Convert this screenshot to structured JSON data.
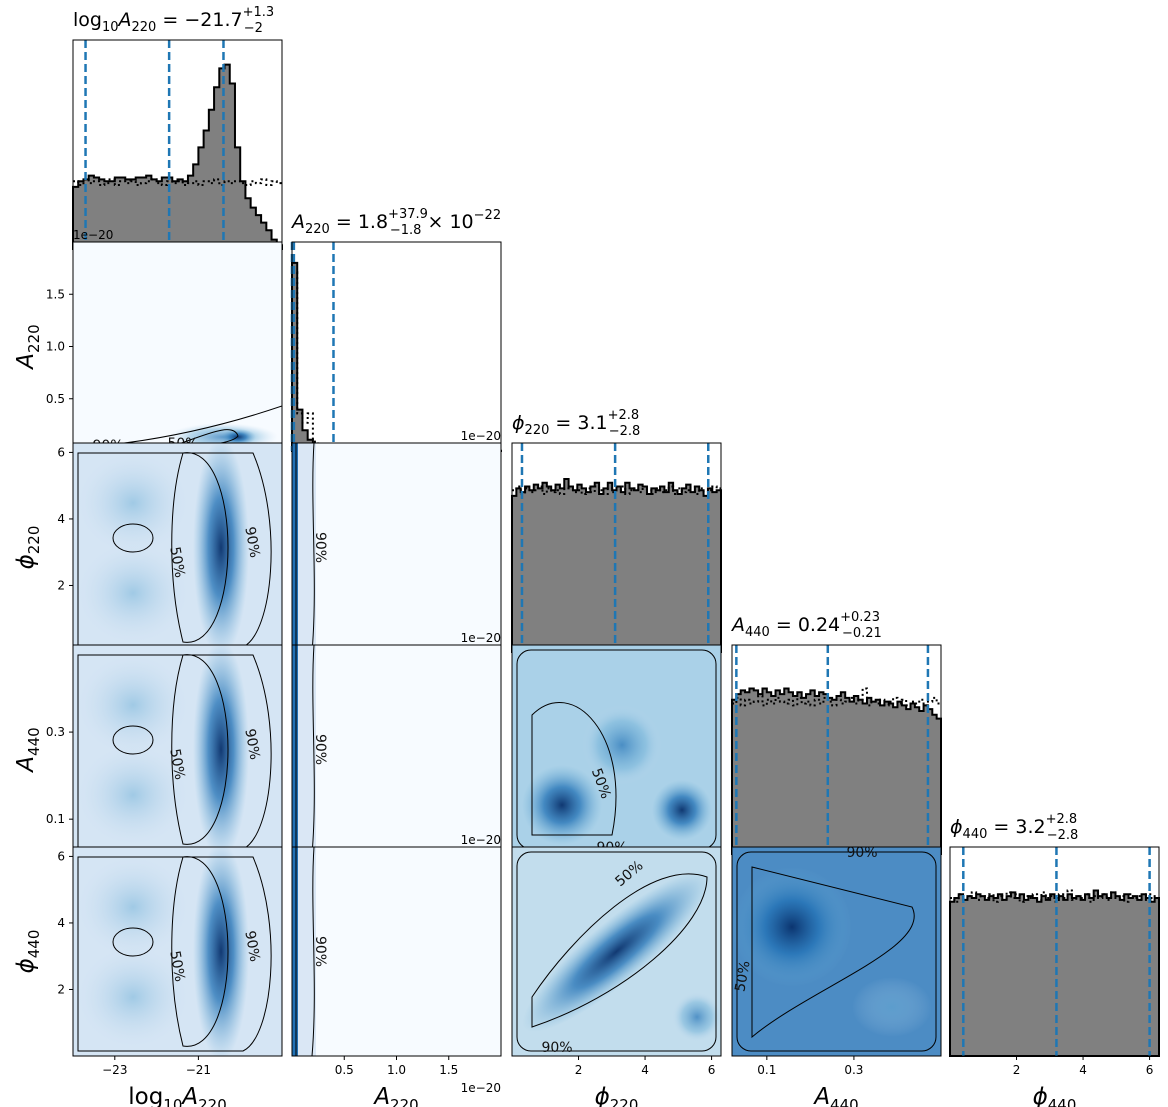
{
  "chart_data": {
    "type": "corner",
    "parameters": [
      {
        "key": "logA220",
        "label_main": "log",
        "label_sub1": "10",
        "label_var": "A",
        "label_sub2": "220",
        "range": [
          -24.0,
          -19.0
        ],
        "ticks": [
          -23,
          -21
        ],
        "tick_labels": [
          "−23",
          "−21"
        ],
        "title": {
          "prefix": "log",
          "sub1": "10",
          "var": "A",
          "sub2": "220",
          "median": "−21.7",
          "plus": "+1.3",
          "minus": "−2",
          "suffix": ""
        },
        "quantiles": [
          -23.7,
          -21.7,
          -20.4
        ]
      },
      {
        "key": "A220",
        "label_var": "A",
        "label_sub2": "220",
        "range": [
          0.0,
          2e-20
        ],
        "ticks": [
          5e-21,
          1e-20,
          1.5e-20
        ],
        "tick_labels": [
          "0.5",
          "1.0",
          "1.5"
        ],
        "offset_text": "1e−20",
        "title": {
          "var": "A",
          "sub2": "220",
          "median": "1.8",
          "plus": "+37.9",
          "minus": "−1.8",
          "suffix": "× 10",
          "exp": "−22"
        },
        "quantiles": [
          0.0,
          1.8e-22,
          3.97e-21
        ]
      },
      {
        "key": "phi220",
        "label_var": "ϕ",
        "label_sub2": "220",
        "range": [
          0.0,
          6.283
        ],
        "ticks": [
          2,
          4,
          6
        ],
        "tick_labels": [
          "2",
          "4",
          "6"
        ],
        "title": {
          "var": "ϕ",
          "sub2": "220",
          "median": "3.1",
          "plus": "+2.8",
          "minus": "−2.8",
          "suffix": ""
        },
        "quantiles": [
          0.3,
          3.1,
          5.9
        ]
      },
      {
        "key": "A440",
        "label_var": "A",
        "label_sub2": "440",
        "range": [
          0.02,
          0.5
        ],
        "ticks": [
          0.1,
          0.3
        ],
        "tick_labels": [
          "0.1",
          "0.3"
        ],
        "title": {
          "var": "A",
          "sub2": "440",
          "median": "0.24",
          "plus": "+0.23",
          "minus": "−0.21",
          "suffix": ""
        },
        "quantiles": [
          0.03,
          0.24,
          0.47
        ]
      },
      {
        "key": "phi440",
        "label_var": "ϕ",
        "label_sub2": "440",
        "range": [
          0.0,
          6.283
        ],
        "ticks": [
          2,
          4,
          6
        ],
        "tick_labels": [
          "2",
          "4",
          "6"
        ],
        "title": {
          "var": "ϕ",
          "sub2": "440",
          "median": "3.2",
          "plus": "+2.8",
          "minus": "−2.8",
          "suffix": ""
        },
        "quantiles": [
          0.4,
          3.2,
          6.0
        ]
      }
    ],
    "y_tick_labels_override": {
      "A220": [
        "0.5",
        "1.0",
        "1.5"
      ],
      "phi220": [
        "2",
        "4",
        "6"
      ],
      "A440": [
        "0.1",
        "0.3"
      ],
      "phi440": [
        "2",
        "4",
        "6"
      ]
    },
    "offset_texts": [
      "1e−20",
      "1e−20",
      "1e−20",
      "1e−20",
      "1e−20"
    ],
    "contour_levels": [
      "50%",
      "90%"
    ],
    "histograms": {
      "logA220": {
        "bins": 40,
        "values": [
          0.33,
          0.36,
          0.37,
          0.39,
          0.38,
          0.37,
          0.36,
          0.36,
          0.38,
          0.38,
          0.37,
          0.37,
          0.38,
          0.38,
          0.39,
          0.37,
          0.36,
          0.38,
          0.38,
          0.36,
          0.37,
          0.36,
          0.39,
          0.45,
          0.54,
          0.63,
          0.74,
          0.86,
          0.96,
          0.98,
          0.88,
          0.54,
          0.36,
          0.27,
          0.22,
          0.18,
          0.14,
          0.1,
          0.05,
          0.02
        ],
        "prior": [
          0.36,
          0.34,
          0.37,
          0.35,
          0.36,
          0.34,
          0.35,
          0.37,
          0.34,
          0.36,
          0.35,
          0.36,
          0.34,
          0.35,
          0.36,
          0.37,
          0.35,
          0.34,
          0.36,
          0.35,
          0.36,
          0.34,
          0.35,
          0.36,
          0.34,
          0.36,
          0.35,
          0.37,
          0.34,
          0.36,
          0.35,
          0.36,
          0.35,
          0.34,
          0.36,
          0.35,
          0.37,
          0.34,
          0.36,
          0.35
        ]
      },
      "A220": {
        "bins": 40,
        "values": [
          1.0,
          0.22,
          0.11,
          0.06,
          0.04,
          0.025,
          0.02,
          0.012,
          0.01,
          0.008,
          0.006,
          0.005,
          0.004,
          0.004,
          0.003,
          0.003,
          0.003,
          0.002,
          0.002,
          0.002,
          0.002,
          0.002,
          0.001,
          0.001,
          0.001,
          0.001,
          0.001,
          0.001,
          0.001,
          0.001,
          0.001,
          0.001,
          0.001,
          0.001,
          0.001,
          0.001,
          0.001,
          0.001,
          0.001,
          0.001
        ],
        "prior": [
          0.95,
          0.2,
          0.15,
          0.2,
          0.05,
          0.03,
          0.02,
          0.02,
          0.015,
          0.01,
          0.008,
          0.006,
          0.006,
          0.005,
          0.004,
          0.004,
          0.004,
          0.003,
          0.003,
          0.003,
          0.003,
          0.002,
          0.002,
          0.002,
          0.002,
          0.002,
          0.002,
          0.002,
          0.002,
          0.002,
          0.002,
          0.002,
          0.002,
          0.002,
          0.002,
          0.002,
          0.002,
          0.002,
          0.002,
          0.002
        ]
      },
      "phi220": {
        "bins": 48,
        "values": [
          0.83,
          0.87,
          0.85,
          0.88,
          0.86,
          0.89,
          0.87,
          0.9,
          0.88,
          0.86,
          0.89,
          0.87,
          0.92,
          0.88,
          0.86,
          0.89,
          0.87,
          0.85,
          0.88,
          0.9,
          0.84,
          0.87,
          0.9,
          0.86,
          0.88,
          0.85,
          0.9,
          0.87,
          0.86,
          0.89,
          0.88,
          0.84,
          0.87,
          0.86,
          0.88,
          0.85,
          0.9,
          0.86,
          0.84,
          0.87,
          0.89,
          0.85,
          0.88,
          0.86,
          0.83,
          0.87,
          0.85,
          0.86
        ],
        "prior": [
          0.86,
          0.88,
          0.84,
          0.87,
          0.85,
          0.86,
          0.88,
          0.84,
          0.87,
          0.85,
          0.86,
          0.84,
          0.87,
          0.88,
          0.85,
          0.86,
          0.84,
          0.87,
          0.85,
          0.88,
          0.86,
          0.84,
          0.87,
          0.85,
          0.86,
          0.88,
          0.84,
          0.86,
          0.87,
          0.85,
          0.88,
          0.86,
          0.84,
          0.87,
          0.85,
          0.86,
          0.88,
          0.84,
          0.87,
          0.85,
          0.86,
          0.88,
          0.84,
          0.87,
          0.85,
          0.86,
          0.88,
          0.87
        ]
      },
      "A440": {
        "bins": 48,
        "values": [
          0.82,
          0.85,
          0.87,
          0.86,
          0.88,
          0.87,
          0.85,
          0.88,
          0.86,
          0.84,
          0.87,
          0.85,
          0.88,
          0.86,
          0.84,
          0.86,
          0.83,
          0.85,
          0.87,
          0.84,
          0.86,
          0.85,
          0.83,
          0.82,
          0.84,
          0.86,
          0.83,
          0.81,
          0.84,
          0.82,
          0.8,
          0.83,
          0.81,
          0.82,
          0.79,
          0.81,
          0.8,
          0.78,
          0.81,
          0.79,
          0.77,
          0.8,
          0.78,
          0.76,
          0.79,
          0.77,
          0.74,
          0.72
        ],
        "prior": [
          0.8,
          0.83,
          0.79,
          0.82,
          0.8,
          0.81,
          0.84,
          0.79,
          0.82,
          0.8,
          0.83,
          0.81,
          0.8,
          0.82,
          0.79,
          0.83,
          0.8,
          0.81,
          0.79,
          0.82,
          0.8,
          0.83,
          0.81,
          0.79,
          0.82,
          0.8,
          0.81,
          0.83,
          0.8,
          0.82,
          0.88,
          0.79,
          0.81,
          0.8,
          0.82,
          0.79,
          0.81,
          0.83,
          0.8,
          0.82,
          0.79,
          0.81,
          0.8,
          0.82,
          0.79,
          0.81,
          0.83,
          0.8
        ]
      },
      "phi440": {
        "bins": 48,
        "values": [
          0.82,
          0.84,
          0.86,
          0.83,
          0.85,
          0.84,
          0.86,
          0.85,
          0.83,
          0.85,
          0.84,
          0.86,
          0.83,
          0.85,
          0.87,
          0.84,
          0.86,
          0.83,
          0.85,
          0.84,
          0.82,
          0.85,
          0.83,
          0.86,
          0.84,
          0.85,
          0.83,
          0.86,
          0.84,
          0.85,
          0.83,
          0.86,
          0.84,
          0.88,
          0.85,
          0.86,
          0.84,
          0.87,
          0.85,
          0.83,
          0.86,
          0.84,
          0.85,
          0.83,
          0.86,
          0.84,
          0.82,
          0.84
        ],
        "prior": [
          0.84,
          0.82,
          0.86,
          0.83,
          0.85,
          0.87,
          0.83,
          0.85,
          0.84,
          0.86,
          0.82,
          0.85,
          0.83,
          0.87,
          0.84,
          0.86,
          0.82,
          0.85,
          0.84,
          0.86,
          0.83,
          0.87,
          0.84,
          0.85,
          0.82,
          0.86,
          0.84,
          0.88,
          0.83,
          0.85,
          0.84,
          0.86,
          0.82,
          0.85,
          0.84,
          0.86,
          0.83,
          0.87,
          0.84,
          0.85,
          0.82,
          0.86,
          0.84,
          0.85,
          0.83,
          0.86,
          0.84,
          0.85
        ]
      }
    },
    "colors": {
      "hist_fill": "#808080",
      "quantile_line": "#1f77b4",
      "kde_cmap": [
        "#f7fbff",
        "#c6dbef",
        "#6baed6",
        "#2171b5",
        "#08306b"
      ],
      "contour": "#000000"
    }
  }
}
